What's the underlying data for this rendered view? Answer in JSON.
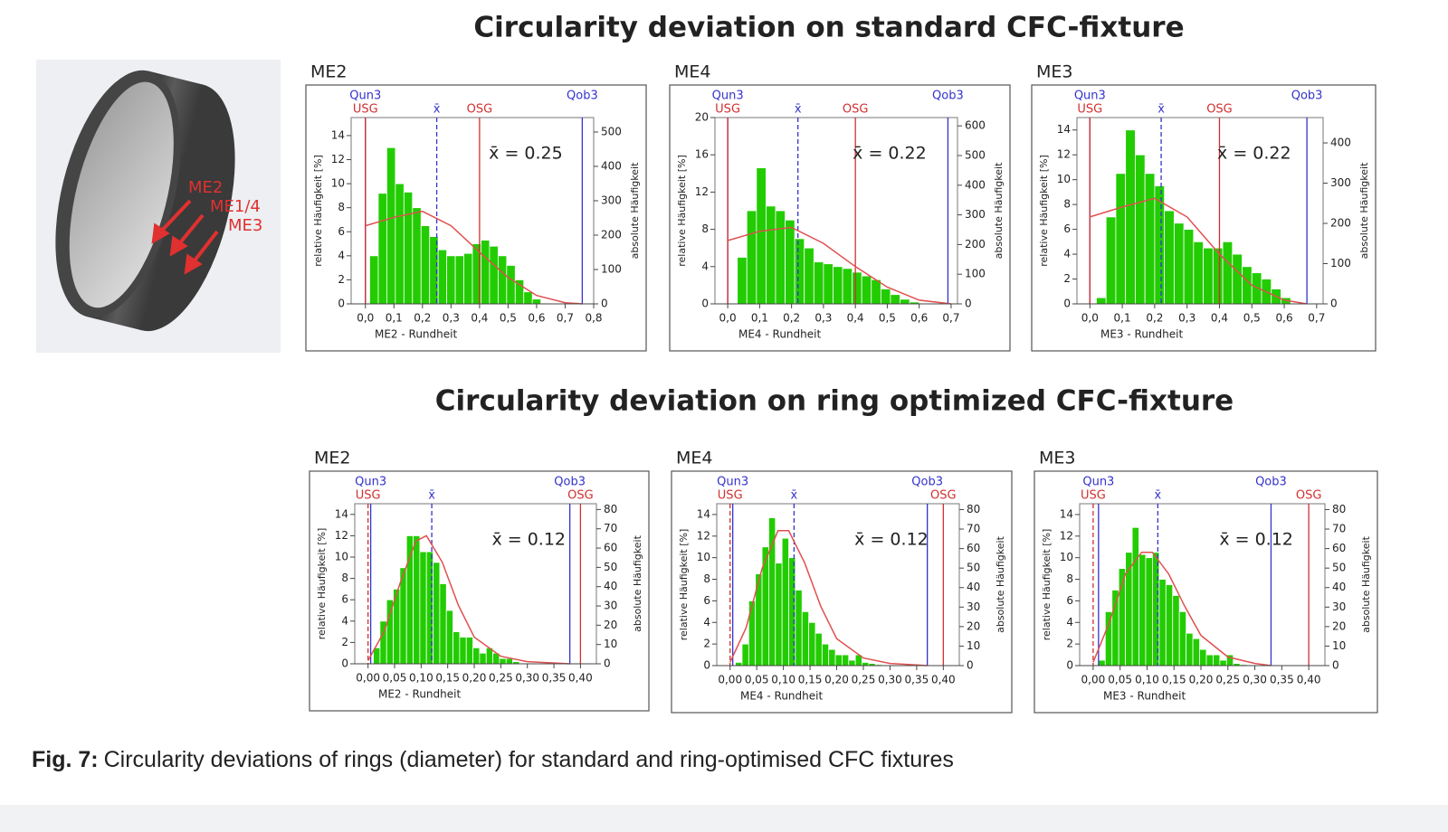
{
  "headings": [
    "Circularity deviation on standard CFC-fixture",
    "Circularity deviation on ring optimized CFC-fixture"
  ],
  "image": {
    "labels": [
      "ME2",
      "ME1/4",
      "ME3"
    ]
  },
  "caption": {
    "label": "Fig. 7:",
    "text": "Circularity deviations of rings (diameter) for standard and ring-optimised CFC fixtures"
  },
  "chart_data": [
    {
      "type": "histogram",
      "title": "ME2",
      "xlabel": "ME2 - Rundheit",
      "ylabel": "relative Häufigkeit [%]",
      "y2label": "absolute Häufigkeit",
      "annotation": "x̄ = 0.25",
      "color": "#22cc00",
      "bins": [
        0.015,
        0.045,
        0.075,
        0.105,
        0.135,
        0.165,
        0.195,
        0.225,
        0.255,
        0.285,
        0.315,
        0.345,
        0.375,
        0.405,
        0.435,
        0.465,
        0.495,
        0.525,
        0.555,
        0.585,
        0.615
      ],
      "values": [
        4,
        9.2,
        13,
        10,
        9.3,
        8,
        6.5,
        5.6,
        4.5,
        4,
        4,
        4.2,
        5,
        5.3,
        4.8,
        4,
        3.2,
        2,
        1,
        0.4
      ],
      "fit": {
        "color": "#e05050",
        "x": [
          0,
          0.1,
          0.2,
          0.3,
          0.4,
          0.5,
          0.6,
          0.7,
          0.76
        ],
        "values": [
          6.5,
          7.2,
          7.7,
          6.5,
          4.3,
          2.2,
          0.7,
          0.1,
          0
        ]
      },
      "reference_lines": [
        {
          "name": "Qun3",
          "value": 0,
          "color": "#3333cc"
        },
        {
          "name": "USG",
          "value": 0,
          "color": "#d03030"
        },
        {
          "name": "x̄",
          "value": 0.25,
          "color": "#3333cc",
          "dash": true
        },
        {
          "name": "OSG",
          "value": 0.4,
          "color": "#d03030"
        },
        {
          "name": "Qob3",
          "value": 0.76,
          "color": "#3333cc"
        }
      ],
      "xlim": [
        -0.05,
        0.8
      ],
      "xticks": [
        {
          "value": 0,
          "label": "0,0"
        },
        {
          "value": 0.1,
          "label": "0,1"
        },
        {
          "value": 0.2,
          "label": "0,2"
        },
        {
          "value": 0.3,
          "label": "0,3"
        },
        {
          "value": 0.4,
          "label": "0,4"
        },
        {
          "value": 0.5,
          "label": "0,5"
        },
        {
          "value": 0.6,
          "label": "0,6"
        },
        {
          "value": 0.7,
          "label": "0,7"
        },
        {
          "value": 0.8,
          "label": "0,8"
        }
      ],
      "ylim": [
        0,
        15.5
      ],
      "yticks": [
        0,
        2,
        4,
        6,
        8,
        10,
        12,
        14
      ],
      "y2lim": [
        0,
        542
      ],
      "y2ticks": [
        0,
        100,
        200,
        300,
        400,
        500
      ]
    },
    {
      "type": "histogram",
      "title": "ME4",
      "xlabel": "ME4 - Rundheit",
      "ylabel": "relative Häufigkeit [%]",
      "y2label": "absolute Häufigkeit",
      "annotation": "x̄ = 0.22",
      "color": "#22cc00",
      "bins": [
        0.03,
        0.06,
        0.09,
        0.12,
        0.15,
        0.18,
        0.21,
        0.24,
        0.27,
        0.3,
        0.33,
        0.36,
        0.39,
        0.42,
        0.45,
        0.48,
        0.51,
        0.54,
        0.57,
        0.6
      ],
      "values": [
        5,
        10,
        14.6,
        10.5,
        10,
        9,
        7,
        6,
        4.5,
        4.3,
        4,
        3.8,
        3.4,
        3,
        2.6,
        1.6,
        1,
        0.5,
        0.2
      ],
      "fit": {
        "color": "#e05050",
        "x": [
          0,
          0.1,
          0.2,
          0.3,
          0.4,
          0.5,
          0.6,
          0.7
        ],
        "values": [
          6.8,
          7.8,
          8.2,
          6.5,
          4,
          1.8,
          0.4,
          0
        ]
      },
      "reference_lines": [
        {
          "name": "Qun3",
          "value": 0,
          "color": "#3333cc"
        },
        {
          "name": "USG",
          "value": 0,
          "color": "#d03030"
        },
        {
          "name": "x̄",
          "value": 0.22,
          "color": "#3333cc",
          "dash": true
        },
        {
          "name": "OSG",
          "value": 0.4,
          "color": "#d03030"
        },
        {
          "name": "Qob3",
          "value": 0.69,
          "color": "#3333cc"
        }
      ],
      "xlim": [
        -0.04,
        0.72
      ],
      "xticks": [
        {
          "value": 0,
          "label": "0,0"
        },
        {
          "value": 0.1,
          "label": "0,1"
        },
        {
          "value": 0.2,
          "label": "0,2"
        },
        {
          "value": 0.3,
          "label": "0,3"
        },
        {
          "value": 0.4,
          "label": "0,4"
        },
        {
          "value": 0.5,
          "label": "0,5"
        },
        {
          "value": 0.6,
          "label": "0,6"
        },
        {
          "value": 0.7,
          "label": "0,7"
        }
      ],
      "ylim": [
        0,
        20
      ],
      "yticks": [
        0,
        4,
        8,
        12,
        16,
        20
      ],
      "y2lim": [
        0,
        628
      ],
      "y2ticks": [
        0,
        100,
        200,
        300,
        400,
        500,
        600
      ]
    },
    {
      "type": "histogram",
      "title": "ME3",
      "xlabel": "ME3 - Rundheit",
      "ylabel": "relative Häufigkeit [%]",
      "y2label": "absolute Häufigkeit",
      "annotation": "x̄ = 0.22",
      "color": "#22cc00",
      "bins": [
        0.02,
        0.05,
        0.08,
        0.11,
        0.14,
        0.17,
        0.2,
        0.23,
        0.26,
        0.29,
        0.32,
        0.35,
        0.38,
        0.41,
        0.44,
        0.47,
        0.5,
        0.53,
        0.56,
        0.59,
        0.62
      ],
      "values": [
        0.5,
        7,
        10.5,
        14,
        12,
        10.5,
        9.5,
        7.5,
        6.5,
        6,
        5,
        4.5,
        4.5,
        5,
        4,
        3,
        2.5,
        2,
        1.2,
        0.5
      ],
      "fit": {
        "color": "#e05050",
        "x": [
          0,
          0.1,
          0.2,
          0.3,
          0.4,
          0.5,
          0.6,
          0.67
        ],
        "values": [
          7,
          7.8,
          8.5,
          7,
          4,
          1.5,
          0.3,
          0
        ]
      },
      "reference_lines": [
        {
          "name": "Qun3",
          "value": 0,
          "color": "#3333cc"
        },
        {
          "name": "USG",
          "value": 0,
          "color": "#d03030"
        },
        {
          "name": "x̄",
          "value": 0.22,
          "color": "#3333cc",
          "dash": true
        },
        {
          "name": "OSG",
          "value": 0.4,
          "color": "#d03030"
        },
        {
          "name": "Qob3",
          "value": 0.67,
          "color": "#3333cc"
        }
      ],
      "xlim": [
        -0.04,
        0.72
      ],
      "xticks": [
        {
          "value": 0,
          "label": "0,0"
        },
        {
          "value": 0.1,
          "label": "0,1"
        },
        {
          "value": 0.2,
          "label": "0,2"
        },
        {
          "value": 0.3,
          "label": "0,3"
        },
        {
          "value": 0.4,
          "label": "0,4"
        },
        {
          "value": 0.5,
          "label": "0,5"
        },
        {
          "value": 0.6,
          "label": "0,6"
        },
        {
          "value": 0.7,
          "label": "0,7"
        }
      ],
      "ylim": [
        0,
        15
      ],
      "yticks": [
        0,
        2,
        4,
        6,
        8,
        10,
        12,
        14
      ],
      "y2lim": [
        0,
        463
      ],
      "y2ticks": [
        0,
        100,
        200,
        300,
        400
      ]
    },
    {
      "type": "histogram",
      "title": "ME2",
      "xlabel": "ME2 - Rundheit",
      "ylabel": "relative Häufigkeit [%]",
      "y2label": "absolute Häufigkeit",
      "annotation": "x̄ = 0.12",
      "color": "#22cc00",
      "bins": [
        0.01,
        0.0225,
        0.035,
        0.0475,
        0.06,
        0.0725,
        0.085,
        0.0975,
        0.11,
        0.1225,
        0.135,
        0.1475,
        0.16,
        0.1725,
        0.185,
        0.1975,
        0.21,
        0.2225,
        0.235,
        0.2475,
        0.26,
        0.2725,
        0.285
      ],
      "values": [
        1.5,
        4,
        6,
        7,
        9,
        12,
        12,
        10.5,
        10.5,
        9.5,
        7.5,
        5,
        3,
        2.5,
        2.5,
        1.5,
        1,
        1.5,
        1,
        0.5,
        0.5,
        0.2
      ],
      "fit": {
        "color": "#e05050",
        "x": [
          0,
          0.03,
          0.06,
          0.09,
          0.11,
          0.14,
          0.17,
          0.2,
          0.25,
          0.3,
          0.38
        ],
        "values": [
          0.3,
          3,
          7.5,
          11.5,
          12,
          9.5,
          5.5,
          2.5,
          0.7,
          0.2,
          0
        ]
      },
      "reference_lines": [
        {
          "name": "USG",
          "value": 0,
          "color": "#d03030",
          "dash": true
        },
        {
          "name": "Qun3",
          "value": 0.005,
          "color": "#3333cc"
        },
        {
          "name": "x̄",
          "value": 0.12,
          "color": "#3333cc",
          "dash": true
        },
        {
          "name": "Qob3",
          "value": 0.38,
          "color": "#3333cc"
        },
        {
          "name": "OSG",
          "value": 0.4,
          "color": "#d03030"
        }
      ],
      "xlim": [
        -0.025,
        0.43
      ],
      "xticks": [
        {
          "value": 0,
          "label": "0,00"
        },
        {
          "value": 0.05,
          "label": "0,05"
        },
        {
          "value": 0.1,
          "label": "0,10"
        },
        {
          "value": 0.15,
          "label": "0,15"
        },
        {
          "value": 0.2,
          "label": "0,20"
        },
        {
          "value": 0.25,
          "label": "0,25"
        },
        {
          "value": 0.3,
          "label": "0,30"
        },
        {
          "value": 0.35,
          "label": "0,35"
        },
        {
          "value": 0.4,
          "label": "0,40"
        }
      ],
      "ylim": [
        0,
        15
      ],
      "yticks": [
        0,
        2,
        4,
        6,
        8,
        10,
        12,
        14
      ],
      "y2lim": [
        0,
        83
      ],
      "y2ticks": [
        0,
        10,
        20,
        30,
        40,
        50,
        60,
        70,
        80
      ]
    },
    {
      "type": "histogram",
      "title": "ME4",
      "xlabel": "ME4 - Rundheit",
      "ylabel": "relative Häufigkeit [%]",
      "y2label": "absolute Häufigkeit",
      "annotation": "x̄ = 0.12",
      "color": "#22cc00",
      "bins": [
        0.01,
        0.0225,
        0.035,
        0.0475,
        0.06,
        0.0725,
        0.085,
        0.0975,
        0.11,
        0.1225,
        0.135,
        0.1475,
        0.16,
        0.1725,
        0.185,
        0.1975,
        0.21,
        0.2225,
        0.235,
        0.2475,
        0.26,
        0.2725,
        0.285
      ],
      "values": [
        0.3,
        2,
        6,
        8.5,
        11,
        13.7,
        9.5,
        11.8,
        10,
        7,
        5,
        4,
        3,
        2,
        1.5,
        1,
        1,
        0.5,
        1,
        0.3,
        0.2,
        0.1
      ],
      "fit": {
        "color": "#e05050",
        "x": [
          0,
          0.03,
          0.06,
          0.09,
          0.11,
          0.14,
          0.17,
          0.2,
          0.25,
          0.3,
          0.37
        ],
        "values": [
          0.3,
          3.5,
          9,
          12.5,
          12.5,
          9.5,
          5.5,
          2.5,
          0.7,
          0.2,
          0
        ]
      },
      "reference_lines": [
        {
          "name": "USG",
          "value": 0,
          "color": "#d03030",
          "dash": true
        },
        {
          "name": "Qun3",
          "value": 0.005,
          "color": "#3333cc"
        },
        {
          "name": "x̄",
          "value": 0.12,
          "color": "#3333cc",
          "dash": true
        },
        {
          "name": "Qob3",
          "value": 0.37,
          "color": "#3333cc"
        },
        {
          "name": "OSG",
          "value": 0.4,
          "color": "#d03030"
        }
      ],
      "xlim": [
        -0.025,
        0.43
      ],
      "xticks": [
        {
          "value": 0,
          "label": "0,00"
        },
        {
          "value": 0.05,
          "label": "0,05"
        },
        {
          "value": 0.1,
          "label": "0,10"
        },
        {
          "value": 0.15,
          "label": "0,15"
        },
        {
          "value": 0.2,
          "label": "0,20"
        },
        {
          "value": 0.25,
          "label": "0,25"
        },
        {
          "value": 0.3,
          "label": "0,30"
        },
        {
          "value": 0.35,
          "label": "0,35"
        },
        {
          "value": 0.4,
          "label": "0,40"
        }
      ],
      "ylim": [
        0,
        15
      ],
      "yticks": [
        0,
        2,
        4,
        6,
        8,
        10,
        12,
        14
      ],
      "y2lim": [
        0,
        83
      ],
      "y2ticks": [
        0,
        10,
        20,
        30,
        40,
        50,
        60,
        70,
        80
      ]
    },
    {
      "type": "histogram",
      "title": "ME3",
      "xlabel": "ME3 - Rundheit",
      "ylabel": "relative Häufigkeit [%]",
      "y2label": "absolute Häufigkeit",
      "annotation": "x̄ = 0.12",
      "color": "#22cc00",
      "bins": [
        0.01,
        0.0225,
        0.035,
        0.0475,
        0.06,
        0.0725,
        0.085,
        0.0975,
        0.11,
        0.1225,
        0.135,
        0.1475,
        0.16,
        0.1725,
        0.185,
        0.1975,
        0.21,
        0.2225,
        0.235,
        0.2475,
        0.26,
        0.2725,
        0.285
      ],
      "values": [
        0.5,
        5,
        7,
        9,
        10.5,
        12.8,
        10.3,
        10,
        10.5,
        8,
        7.5,
        6.5,
        5,
        3,
        2.5,
        1.5,
        1,
        1,
        0.5,
        1,
        0.2,
        0.1
      ],
      "fit": {
        "color": "#e05050",
        "x": [
          0,
          0.03,
          0.06,
          0.09,
          0.11,
          0.14,
          0.17,
          0.2,
          0.25,
          0.3,
          0.33
        ],
        "values": [
          0.3,
          4,
          8.5,
          10.5,
          10.5,
          8.5,
          5.5,
          2.8,
          0.8,
          0.2,
          0
        ]
      },
      "reference_lines": [
        {
          "name": "USG",
          "value": 0,
          "color": "#d03030",
          "dash": true
        },
        {
          "name": "Qun3",
          "value": 0.01,
          "color": "#3333cc"
        },
        {
          "name": "x̄",
          "value": 0.12,
          "color": "#3333cc",
          "dash": true
        },
        {
          "name": "Qob3",
          "value": 0.33,
          "color": "#3333cc"
        },
        {
          "name": "OSG",
          "value": 0.4,
          "color": "#d03030"
        }
      ],
      "xlim": [
        -0.025,
        0.43
      ],
      "xticks": [
        {
          "value": 0,
          "label": "0,00"
        },
        {
          "value": 0.05,
          "label": "0,05"
        },
        {
          "value": 0.1,
          "label": "0,10"
        },
        {
          "value": 0.15,
          "label": "0,15"
        },
        {
          "value": 0.2,
          "label": "0,20"
        },
        {
          "value": 0.25,
          "label": "0,25"
        },
        {
          "value": 0.3,
          "label": "0,30"
        },
        {
          "value": 0.35,
          "label": "0,35"
        },
        {
          "value": 0.4,
          "label": "0,40"
        }
      ],
      "ylim": [
        0,
        15
      ],
      "yticks": [
        0,
        2,
        4,
        6,
        8,
        10,
        12,
        14
      ],
      "y2lim": [
        0,
        83
      ],
      "y2ticks": [
        0,
        10,
        20,
        30,
        40,
        50,
        60,
        70,
        80
      ]
    }
  ]
}
